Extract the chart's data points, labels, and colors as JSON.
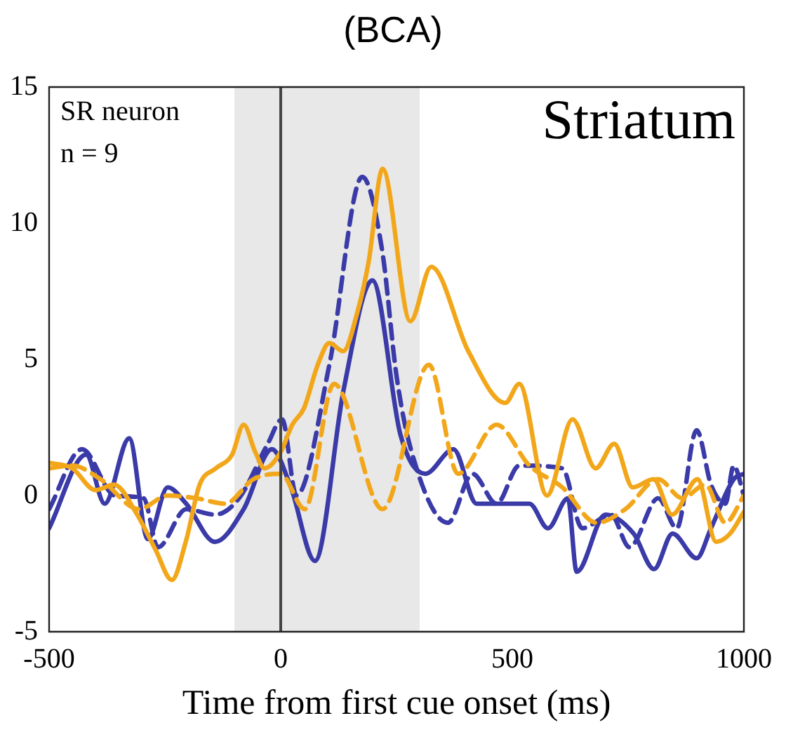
{
  "chart_data": {
    "type": "line",
    "title": "(BCA)",
    "xlabel": "Time from first cue onset (ms)",
    "annotations": [
      "SR neuron",
      "n = 9",
      "Striatum"
    ],
    "xlim": [
      -500,
      1000
    ],
    "xticks": [
      -500,
      0,
      500,
      1000
    ],
    "ylim": [
      -5,
      15
    ],
    "yticks": [
      -5,
      0,
      5,
      10,
      15
    ],
    "grid": false,
    "legend": false,
    "marker": "none",
    "ref_lines": [
      {
        "axis": "x",
        "value": 0,
        "color": "#444444"
      }
    ],
    "bands": [
      {
        "axis": "x",
        "from": -100,
        "to": 300,
        "color": "#e8e8e8"
      }
    ],
    "series": [
      {
        "color": "#f2a71b",
        "line_style": "solid",
        "x": [
          -500,
          -450,
          -400,
          -360,
          -310,
          -270,
          -235,
          -205,
          -175,
          -140,
          -105,
          -80,
          -55,
          -35,
          0,
          25,
          50,
          80,
          105,
          135,
          165,
          190,
          220,
          280,
          325,
          405,
          485,
          515,
          575,
          630,
          680,
          720,
          760,
          805,
          845,
          900,
          940,
          970,
          1000
        ],
        "values": [
          1.2,
          1.0,
          0.2,
          0.4,
          -0.7,
          -2.0,
          -3.1,
          -1.7,
          0.4,
          1.0,
          1.5,
          2.6,
          1.6,
          1.0,
          1.6,
          2.6,
          3.2,
          4.8,
          5.6,
          5.3,
          6.7,
          8.6,
          12.0,
          6.4,
          8.4,
          5.3,
          3.4,
          4.1,
          0.0,
          2.8,
          1.0,
          1.9,
          0.3,
          0.6,
          -0.7,
          0.6,
          -1.7,
          -1.4,
          -0.6
        ]
      },
      {
        "color": "#f2a71b",
        "line_style": "dashed",
        "x": [
          -500,
          -450,
          -389,
          -306,
          -244,
          -182,
          -120,
          -59,
          0,
          52,
          115,
          220,
          320,
          383,
          466,
          537,
          608,
          682,
          744,
          815,
          867,
          917,
          960,
          1000
        ],
        "values": [
          1.0,
          1.1,
          0.6,
          -0.5,
          0.0,
          -0.1,
          -0.3,
          0.6,
          0.8,
          -0.5,
          4.1,
          -0.5,
          4.8,
          0.8,
          2.6,
          1.1,
          0.3,
          -1.0,
          -0.5,
          0.6,
          -0.1,
          0.4,
          -1.0,
          0.0
        ]
      },
      {
        "color": "#3a3aa8",
        "line_style": "solid",
        "x": [
          -500,
          -420,
          -380,
          -327,
          -287,
          -244,
          -204,
          -142,
          -80,
          -19,
          22,
          74,
          136,
          198,
          259,
          312,
          373,
          423,
          537,
          577,
          620,
          639,
          701,
          762,
          806,
          846,
          898,
          929,
          978,
          1000
        ],
        "values": [
          -1.2,
          1.5,
          -0.3,
          2.1,
          -1.6,
          0.3,
          -0.3,
          -1.7,
          -0.5,
          1.7,
          0.3,
          -2.4,
          3.9,
          7.9,
          2.2,
          0.8,
          1.7,
          -0.3,
          -0.3,
          -1.2,
          -0.1,
          -2.8,
          -0.7,
          -1.4,
          -2.7,
          -1.4,
          -2.3,
          -1.2,
          0.6,
          0.8
        ]
      },
      {
        "color": "#3a3aa8",
        "line_style": "dashed",
        "x": [
          -500,
          -429,
          -358,
          -296,
          -265,
          -204,
          -142,
          -90,
          -28,
          3,
          34,
          105,
          176,
          219,
          250,
          281,
          361,
          414,
          466,
          515,
          608,
          651,
          713,
          753,
          815,
          855,
          898,
          929,
          960,
          978,
          1000
        ],
        "values": [
          -0.5,
          1.7,
          0.0,
          -0.1,
          -1.9,
          -0.5,
          -0.7,
          -0.1,
          1.9,
          2.8,
          0.0,
          4.8,
          11.7,
          9.0,
          4.4,
          1.7,
          -1.0,
          0.8,
          -0.3,
          1.1,
          1.0,
          -1.2,
          -0.7,
          -1.9,
          -0.1,
          -1.2,
          2.4,
          0.4,
          -0.3,
          1.1,
          0.0
        ]
      }
    ]
  }
}
